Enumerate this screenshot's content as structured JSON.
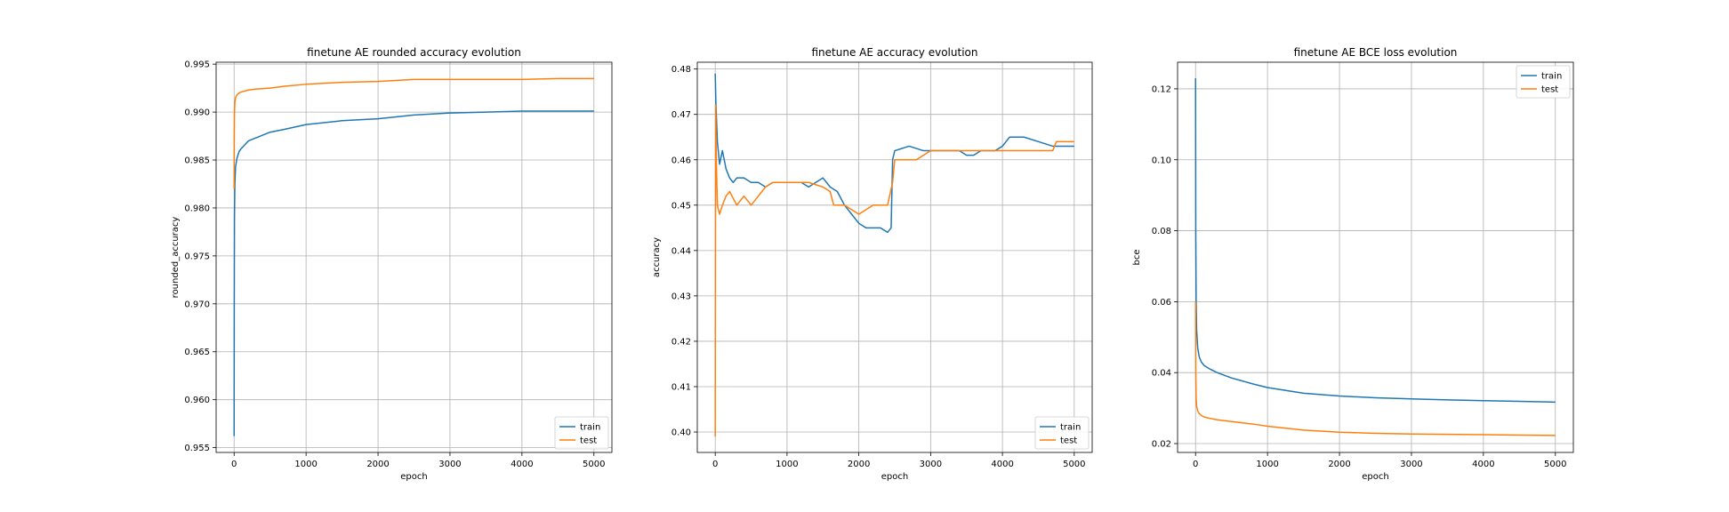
{
  "colors": {
    "train": "#1f77b4",
    "test": "#ff7f0e"
  },
  "chart_data": [
    {
      "type": "line",
      "title": "finetune AE rounded accuracy evolution",
      "xlabel": "epoch",
      "ylabel": "rounded_accuracy",
      "xlim": [
        -250,
        5250
      ],
      "ylim": [
        0.9545,
        0.9952
      ],
      "xticks": [
        0,
        1000,
        2000,
        3000,
        4000,
        5000
      ],
      "yticks": [
        0.955,
        0.96,
        0.965,
        0.97,
        0.975,
        0.98,
        0.985,
        0.99,
        0.995
      ],
      "tick_decimals": 3,
      "legend": "lower right",
      "grid": true,
      "series": [
        {
          "name": "train",
          "x": [
            0,
            2,
            5,
            10,
            20,
            40,
            70,
            100,
            150,
            200,
            300,
            400,
            500,
            700,
            1000,
            1500,
            2000,
            2500,
            3000,
            3500,
            4000,
            4500,
            5000
          ],
          "values": [
            0.9562,
            0.97,
            0.979,
            0.9825,
            0.9843,
            0.9852,
            0.9859,
            0.9862,
            0.9866,
            0.987,
            0.9873,
            0.9876,
            0.9879,
            0.9882,
            0.9887,
            0.9891,
            0.9893,
            0.9897,
            0.9899,
            0.99,
            0.9901,
            0.9901,
            0.9901
          ]
        },
        {
          "name": "test",
          "x": [
            0,
            2,
            5,
            10,
            20,
            40,
            70,
            100,
            150,
            200,
            300,
            500,
            700,
            1000,
            1500,
            2000,
            2500,
            3000,
            3500,
            4000,
            4500,
            5000
          ],
          "values": [
            0.982,
            0.987,
            0.99,
            0.991,
            0.9915,
            0.9918,
            0.992,
            0.9921,
            0.9922,
            0.9923,
            0.9924,
            0.9925,
            0.9927,
            0.9929,
            0.9931,
            0.9932,
            0.9934,
            0.9934,
            0.9934,
            0.9934,
            0.9935,
            0.9935
          ]
        }
      ]
    },
    {
      "type": "line",
      "title": "finetune AE accuracy evolution",
      "xlabel": "epoch",
      "ylabel": "accuracy",
      "xlim": [
        -250,
        5250
      ],
      "ylim": [
        0.3955,
        0.4815
      ],
      "xticks": [
        0,
        1000,
        2000,
        3000,
        4000,
        5000
      ],
      "yticks": [
        0.4,
        0.41,
        0.42,
        0.43,
        0.44,
        0.45,
        0.46,
        0.47,
        0.48
      ],
      "tick_decimals": 2,
      "legend": "lower right",
      "grid": true,
      "series": [
        {
          "name": "train",
          "x": [
            0,
            10,
            30,
            60,
            100,
            150,
            200,
            250,
            300,
            400,
            500,
            600,
            700,
            800,
            900,
            1000,
            1100,
            1200,
            1300,
            1400,
            1500,
            1600,
            1700,
            1800,
            1900,
            2000,
            2100,
            2200,
            2300,
            2400,
            2450,
            2470,
            2500,
            2700,
            2900,
            3000,
            3200,
            3400,
            3500,
            3600,
            3700,
            3900,
            4000,
            4100,
            4300,
            4500,
            4700,
            4800,
            5000
          ],
          "values": [
            0.479,
            0.472,
            0.464,
            0.459,
            0.462,
            0.458,
            0.456,
            0.455,
            0.456,
            0.456,
            0.455,
            0.455,
            0.454,
            0.455,
            0.455,
            0.455,
            0.455,
            0.455,
            0.454,
            0.455,
            0.456,
            0.454,
            0.453,
            0.45,
            0.448,
            0.446,
            0.445,
            0.445,
            0.445,
            0.444,
            0.445,
            0.46,
            0.462,
            0.463,
            0.462,
            0.462,
            0.462,
            0.462,
            0.461,
            0.461,
            0.462,
            0.462,
            0.463,
            0.465,
            0.465,
            0.464,
            0.463,
            0.463,
            0.463
          ]
        },
        {
          "name": "test",
          "x": [
            0,
            5,
            15,
            30,
            60,
            100,
            150,
            200,
            300,
            400,
            500,
            600,
            700,
            800,
            1000,
            1300,
            1500,
            1600,
            1650,
            1700,
            1800,
            2000,
            2200,
            2400,
            2470,
            2500,
            2800,
            3000,
            3500,
            4000,
            4500,
            4700,
            4750,
            5000
          ],
          "values": [
            0.399,
            0.472,
            0.46,
            0.45,
            0.448,
            0.45,
            0.452,
            0.453,
            0.45,
            0.452,
            0.45,
            0.452,
            0.454,
            0.455,
            0.455,
            0.455,
            0.454,
            0.453,
            0.45,
            0.45,
            0.45,
            0.448,
            0.45,
            0.45,
            0.455,
            0.46,
            0.46,
            0.462,
            0.462,
            0.462,
            0.462,
            0.462,
            0.464,
            0.464
          ]
        }
      ]
    },
    {
      "type": "line",
      "title": "finetune AE BCE loss evolution",
      "xlabel": "epoch",
      "ylabel": "bce",
      "xlim": [
        -250,
        5250
      ],
      "ylim": [
        0.0175,
        0.1275
      ],
      "xticks": [
        0,
        1000,
        2000,
        3000,
        4000,
        5000
      ],
      "yticks": [
        0.02,
        0.04,
        0.06,
        0.08,
        0.1,
        0.12
      ],
      "tick_decimals": 2,
      "legend": "upper right",
      "grid": true,
      "series": [
        {
          "name": "train",
          "x": [
            0,
            3,
            8,
            15,
            30,
            50,
            80,
            120,
            200,
            300,
            500,
            800,
            1000,
            1500,
            2000,
            2500,
            3000,
            3500,
            4000,
            4500,
            5000
          ],
          "values": [
            0.123,
            0.08,
            0.06,
            0.052,
            0.047,
            0.0445,
            0.043,
            0.042,
            0.041,
            0.04,
            0.0385,
            0.0368,
            0.0358,
            0.0342,
            0.0334,
            0.0329,
            0.0326,
            0.0323,
            0.0321,
            0.0319,
            0.0317
          ]
        },
        {
          "name": "test",
          "x": [
            0,
            3,
            8,
            15,
            30,
            50,
            80,
            120,
            200,
            300,
            500,
            800,
            1000,
            1500,
            2000,
            2500,
            3000,
            3500,
            4000,
            4500,
            5000
          ],
          "values": [
            0.06,
            0.04,
            0.033,
            0.0305,
            0.0292,
            0.0285,
            0.0279,
            0.0275,
            0.0271,
            0.0267,
            0.0262,
            0.0255,
            0.0249,
            0.0238,
            0.0232,
            0.0229,
            0.0227,
            0.0226,
            0.0225,
            0.0224,
            0.0223
          ]
        }
      ]
    }
  ]
}
